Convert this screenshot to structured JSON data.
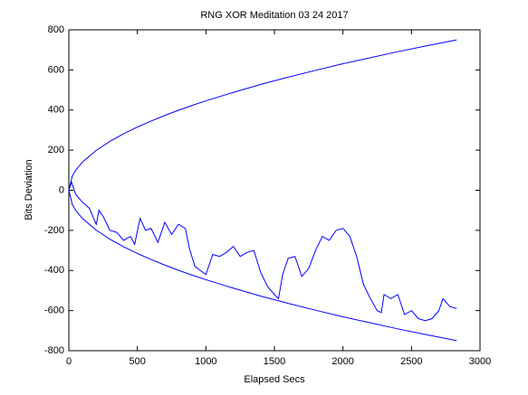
{
  "chart_data": {
    "type": "line",
    "title": "RNG XOR Meditation 03 24 2017",
    "x_label": "Elapsed Secs",
    "y_label": "Bits Deviation",
    "xlim": [
      0,
      3000
    ],
    "xticks": [
      0,
      500,
      1000,
      1500,
      2000,
      2500,
      3000
    ],
    "ylim": [
      -800,
      800
    ],
    "yticks": [
      -800,
      -600,
      -400,
      -200,
      0,
      200,
      400,
      600,
      800
    ],
    "grid": false,
    "series": [
      {
        "color": "#0000ff",
        "x": [
          0,
          25,
          50,
          100,
          200,
          300,
          400,
          500,
          600,
          700,
          800,
          900,
          1000,
          1200,
          1400,
          1600,
          1800,
          2000,
          2200,
          2400,
          2600,
          2830
        ],
        "values": [
          0,
          70,
          100,
          141,
          199,
          244,
          282,
          315,
          345,
          373,
          399,
          423,
          446,
          488,
          528,
          564,
          598,
          631,
          661,
          691,
          719,
          750
        ]
      },
      {
        "color": "#0000ff",
        "x": [
          0,
          25,
          50,
          100,
          200,
          300,
          400,
          500,
          600,
          700,
          800,
          900,
          1000,
          1200,
          1400,
          1600,
          1800,
          2000,
          2200,
          2400,
          2600,
          2830
        ],
        "values": [
          0,
          -70,
          -100,
          -141,
          -199,
          -244,
          -282,
          -315,
          -345,
          -373,
          -399,
          -423,
          -446,
          -488,
          -528,
          -564,
          -598,
          -631,
          -661,
          -691,
          -719,
          -750
        ]
      },
      {
        "color": "#0000ff",
        "x": [
          0,
          20,
          50,
          100,
          150,
          200,
          220,
          250,
          300,
          350,
          400,
          450,
          480,
          520,
          560,
          600,
          650,
          700,
          750,
          800,
          850,
          880,
          920,
          960,
          1000,
          1050,
          1100,
          1150,
          1200,
          1250,
          1300,
          1350,
          1400,
          1450,
          1500,
          1530,
          1560,
          1600,
          1650,
          1700,
          1750,
          1800,
          1850,
          1900,
          1950,
          2000,
          2050,
          2100,
          2150,
          2200,
          2250,
          2280,
          2300,
          2350,
          2400,
          2450,
          2500,
          2550,
          2600,
          2650,
          2700,
          2730,
          2780,
          2830
        ],
        "values": [
          0,
          40,
          -20,
          -60,
          -90,
          -170,
          -100,
          -130,
          -200,
          -210,
          -250,
          -230,
          -270,
          -140,
          -200,
          -190,
          -260,
          -160,
          -220,
          -170,
          -190,
          -290,
          -380,
          -400,
          -420,
          -320,
          -330,
          -310,
          -280,
          -330,
          -310,
          -300,
          -410,
          -480,
          -520,
          -540,
          -420,
          -340,
          -330,
          -430,
          -390,
          -300,
          -230,
          -250,
          -200,
          -190,
          -230,
          -330,
          -470,
          -540,
          -600,
          -610,
          -520,
          -540,
          -520,
          -620,
          -600,
          -640,
          -650,
          -640,
          -600,
          -540,
          -580,
          -590
        ]
      }
    ]
  }
}
